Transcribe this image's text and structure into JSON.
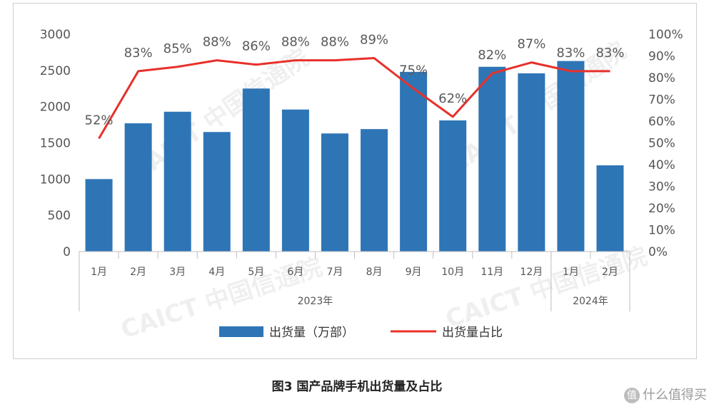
{
  "chart_data": {
    "type": "bar",
    "categories": [
      "1月",
      "2月",
      "3月",
      "4月",
      "5月",
      "6月",
      "7月",
      "8月",
      "9月",
      "10月",
      "11月",
      "12月",
      "1月",
      "2月"
    ],
    "year_groups": [
      {
        "label": "2023年",
        "start": 0,
        "end": 11
      },
      {
        "label": "2024年",
        "start": 12,
        "end": 13
      }
    ],
    "series": [
      {
        "name": "出货量（万部）",
        "type": "bar",
        "axis": "left",
        "color": "#2e75b6",
        "values": [
          1000,
          1770,
          1930,
          1650,
          2250,
          1960,
          1630,
          1690,
          2480,
          1810,
          2550,
          2460,
          2630,
          1190
        ]
      },
      {
        "name": "出货量占比",
        "type": "line",
        "axis": "right",
        "color": "#e8302a",
        "values": [
          52,
          83,
          85,
          88,
          86,
          88,
          88,
          89,
          75,
          62,
          82,
          87,
          83,
          83
        ],
        "labels": [
          "52%",
          "83%",
          "85%",
          "88%",
          "86%",
          "88%",
          "88%",
          "89%",
          "75%",
          "62%",
          "82%",
          "87%",
          "83%",
          "83%"
        ]
      }
    ],
    "y_left": {
      "min": 0,
      "max": 3000,
      "ticks": [
        "0",
        "500",
        "1000",
        "1500",
        "2000",
        "2500",
        "3000"
      ]
    },
    "y_right": {
      "min": 0,
      "max": 100,
      "ticks": [
        "0%",
        "10%",
        "20%",
        "30%",
        "40%",
        "50%",
        "60%",
        "70%",
        "80%",
        "90%",
        "100%"
      ]
    },
    "legend_position": "bottom",
    "grid": false
  },
  "legend": {
    "bar_label": "出货量（万部）",
    "line_label": "出货量占比"
  },
  "watermark_text": "CAICT 中国信通院",
  "caption": "图3   国产品牌手机出货量及占比",
  "site_watermark": {
    "badge": "值",
    "text": "什么值得买"
  }
}
